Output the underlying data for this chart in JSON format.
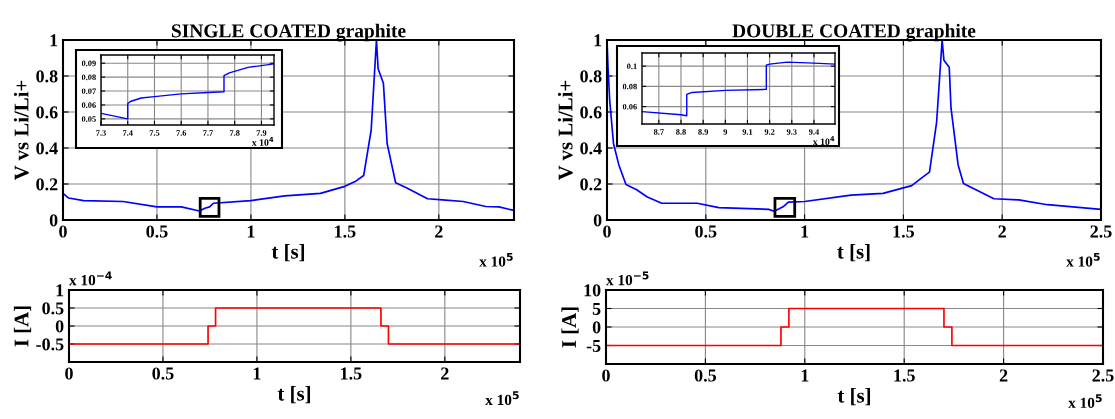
{
  "chart_data": [
    {
      "type": "line",
      "title": "SINGLE COATED graphite",
      "xlabel": "t [s]",
      "ylabel": "V vs Li/Li+",
      "annotations": [
        "x 10$^{5}$"
      ],
      "x": [
        0,
        0.03,
        0.11,
        0.32,
        0.5,
        0.63,
        0.726,
        0.755,
        0.78,
        0.8,
        1.0,
        1.18,
        1.37,
        1.5,
        1.56,
        1.6,
        1.64,
        1.668,
        1.677,
        1.705,
        1.725,
        1.77,
        1.83,
        1.94,
        2.02,
        2.13,
        2.25,
        2.32,
        2.4
      ],
      "series": [
        {
          "color": "#0000ff",
          "values": [
            0.148,
            0.122,
            0.108,
            0.103,
            0.073,
            0.073,
            0.05,
            0.065,
            0.073,
            0.093,
            0.108,
            0.134,
            0.148,
            0.187,
            0.217,
            0.247,
            0.5,
            1.0,
            0.84,
            0.76,
            0.424,
            0.207,
            0.178,
            0.118,
            0.112,
            0.103,
            0.075,
            0.073,
            0.053
          ]
        }
      ],
      "xlim": [
        0,
        2.4
      ],
      "ylim": [
        0,
        1
      ],
      "xticks": [
        0,
        0.5,
        1,
        1.5,
        2
      ],
      "yticks": [
        0,
        0.2,
        0.4,
        0.6,
        0.8,
        1
      ],
      "grid": true,
      "marker": "none",
      "line_style": "solid"
    },
    {
      "type": "line",
      "annotations": [
        "x 10$^{4}$"
      ],
      "x": [
        7.3,
        7.4,
        7.4,
        7.41,
        7.45,
        7.5,
        7.6,
        7.7,
        7.76,
        7.76,
        7.78,
        7.85,
        7.947
      ],
      "series": [
        {
          "color": "#0000ff",
          "values": [
            0.054,
            0.05,
            0.061,
            0.0625,
            0.065,
            0.066,
            0.068,
            0.069,
            0.0695,
            0.081,
            0.083,
            0.087,
            0.0895
          ]
        }
      ],
      "xlim": [
        7.3,
        7.947
      ],
      "ylim": [
        0.0456,
        0.0959
      ],
      "xticks": [
        7.3,
        7.4,
        7.5,
        7.6,
        7.7,
        7.8,
        7.9
      ],
      "yticks": [
        0.05,
        0.06,
        0.07,
        0.08,
        0.09
      ],
      "grid": true,
      "marker": "none",
      "line_style": "solid"
    },
    {
      "type": "line",
      "title": "DOUBLE COATED graphite",
      "xlabel": "t [s]",
      "ylabel": "V vs Li/Li+",
      "annotations": [
        "x 10$^{5}$"
      ],
      "x": [
        0,
        0.005,
        0.014,
        0.033,
        0.06,
        0.096,
        0.15,
        0.204,
        0.277,
        0.457,
        0.566,
        0.819,
        0.846,
        0.891,
        0.918,
        1.0,
        1.235,
        1.397,
        1.542,
        1.596,
        1.632,
        1.668,
        1.696,
        1.705,
        1.732,
        1.741,
        1.777,
        1.804,
        1.849,
        1.958,
        2.084,
        2.229,
        2.5
      ],
      "series": [
        {
          "color": "#0000ff",
          "values": [
            1.0,
            0.85,
            0.66,
            0.424,
            0.306,
            0.197,
            0.168,
            0.128,
            0.093,
            0.093,
            0.069,
            0.059,
            0.049,
            0.073,
            0.099,
            0.103,
            0.138,
            0.148,
            0.191,
            0.237,
            0.266,
            0.542,
            1.0,
            0.888,
            0.848,
            0.621,
            0.306,
            0.203,
            0.178,
            0.118,
            0.112,
            0.085,
            0.059
          ]
        }
      ],
      "xlim": [
        0,
        2.5
      ],
      "ylim": [
        0,
        1
      ],
      "xticks": [
        0,
        0.5,
        1,
        1.5,
        2,
        2.5
      ],
      "yticks": [
        0,
        0.2,
        0.4,
        0.6,
        0.8,
        1
      ],
      "grid": true,
      "marker": "none",
      "line_style": "solid"
    },
    {
      "type": "line",
      "annotations": [
        "x 10$^{4}$"
      ],
      "x": [
        8.624,
        8.8,
        8.826,
        8.826,
        8.85,
        9.0,
        9.185,
        9.185,
        9.2,
        9.28,
        9.4,
        9.495
      ],
      "series": [
        {
          "color": "#0000ff",
          "values": [
            0.055,
            0.052,
            0.051,
            0.072,
            0.074,
            0.076,
            0.077,
            0.101,
            0.102,
            0.104,
            0.103,
            0.102
          ]
        }
      ],
      "xlim": [
        8.624,
        9.495
      ],
      "ylim": [
        0.0428,
        0.113
      ],
      "xticks": [
        8.7,
        8.8,
        8.9,
        9,
        9.1,
        9.2,
        9.3,
        9.4
      ],
      "yticks": [
        0.06,
        0.08,
        0.1
      ],
      "grid": true,
      "marker": "none",
      "line_style": "solid"
    },
    {
      "type": "line",
      "xlabel": "t [s]",
      "ylabel": "I [A]",
      "annotations": [
        "x 10$^{5}$",
        "x 10$^{−4}$"
      ],
      "x": [
        0,
        0.74,
        0.74,
        0.78,
        0.78,
        1.66,
        1.66,
        1.7,
        1.7,
        2.4
      ],
      "series": [
        {
          "color": "#ff0000",
          "values": [
            -0.5,
            -0.5,
            0,
            0,
            0.5,
            0.5,
            0,
            0,
            -0.5,
            -0.5
          ]
        }
      ],
      "xlim": [
        0,
        2.4
      ],
      "ylim": [
        -1,
        1
      ],
      "xticks": [
        0,
        0.5,
        1,
        1.5,
        2
      ],
      "yticks": [
        {
          "value": -1,
          "label": null
        },
        -0.5,
        0,
        0.5,
        1
      ],
      "grid": true,
      "marker": "none",
      "line_style": "solid"
    },
    {
      "type": "line",
      "xlabel": "t [s]",
      "ylabel": "I [A]",
      "annotations": [
        "x 10$^{5}$",
        "x 10$^{−5}$"
      ],
      "x": [
        0,
        0.88,
        0.88,
        0.92,
        0.92,
        1.7,
        1.7,
        1.74,
        1.74,
        2.5
      ],
      "series": [
        {
          "color": "#ff0000",
          "values": [
            -5,
            -5,
            0,
            0,
            5,
            5,
            0,
            0,
            -5,
            -5
          ]
        }
      ],
      "xlim": [
        0,
        2.5
      ],
      "ylim": [
        -10,
        10
      ],
      "xticks": [
        0,
        0.5,
        1,
        1.5,
        2,
        2.5
      ],
      "yticks": [
        {
          "value": -10,
          "label": null
        },
        -5,
        0,
        5,
        10
      ],
      "grid": true,
      "marker": "none",
      "line_style": "solid"
    }
  ]
}
